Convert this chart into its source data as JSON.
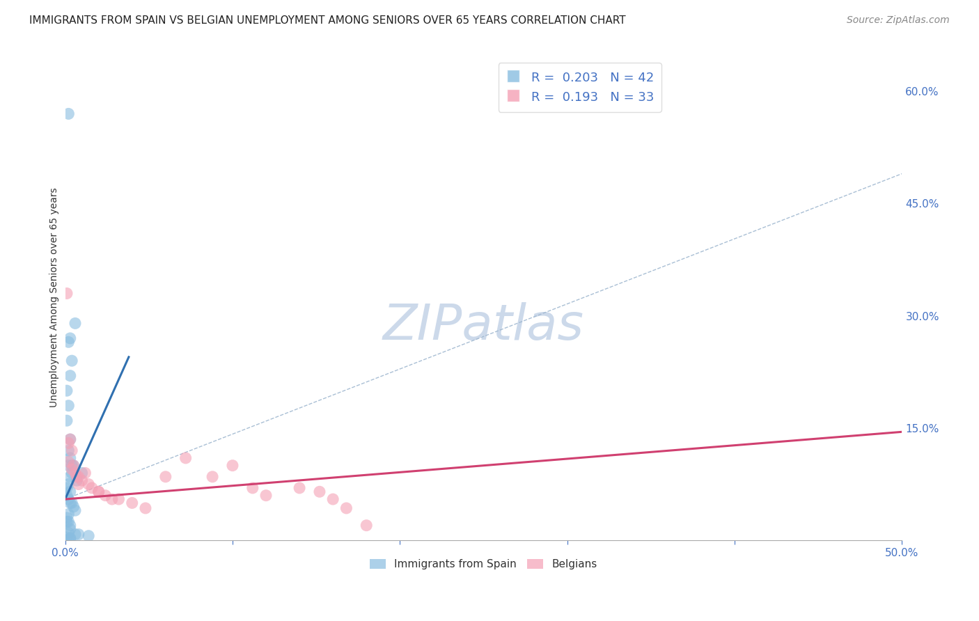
{
  "title": "IMMIGRANTS FROM SPAIN VS BELGIAN UNEMPLOYMENT AMONG SENIORS OVER 65 YEARS CORRELATION CHART",
  "source": "Source: ZipAtlas.com",
  "ylabel": "Unemployment Among Seniors over 65 years",
  "watermark_text": "ZIPatlas",
  "legend_blue": {
    "R": 0.203,
    "N": 42,
    "label": "Immigrants from Spain",
    "color": "#89bde0"
  },
  "legend_pink": {
    "R": 0.193,
    "N": 33,
    "label": "Belgians",
    "color": "#f4a0b5"
  },
  "xmin": 0.0,
  "xmax": 0.5,
  "ymin": 0.0,
  "ymax": 0.65,
  "yticks_right": [
    0.0,
    0.15,
    0.3,
    0.45,
    0.6
  ],
  "ytick_labels_right": [
    "",
    "15.0%",
    "30.0%",
    "45.0%",
    "60.0%"
  ],
  "xticks_positions": [
    0.0,
    0.1,
    0.2,
    0.3,
    0.4,
    0.5
  ],
  "grid_color": "#cccccc",
  "background_color": "#ffffff",
  "blue_scatter_x": [
    0.002,
    0.003,
    0.002,
    0.004,
    0.003,
    0.001,
    0.002,
    0.001,
    0.003,
    0.002,
    0.004,
    0.005,
    0.003,
    0.002,
    0.006,
    0.003,
    0.01,
    0.007,
    0.002,
    0.001,
    0.003,
    0.001,
    0.002,
    0.003,
    0.004,
    0.005,
    0.006,
    0.002,
    0.001,
    0.001,
    0.002,
    0.003,
    0.003,
    0.002,
    0.006,
    0.008,
    0.014,
    0.001,
    0.003,
    0.003,
    0.002,
    0.004
  ],
  "blue_scatter_y": [
    0.57,
    0.27,
    0.265,
    0.24,
    0.22,
    0.2,
    0.18,
    0.16,
    0.135,
    0.12,
    0.1,
    0.1,
    0.11,
    0.1,
    0.29,
    0.085,
    0.09,
    0.08,
    0.075,
    0.07,
    0.065,
    0.06,
    0.055,
    0.05,
    0.05,
    0.045,
    0.04,
    0.035,
    0.03,
    0.025,
    0.025,
    0.02,
    0.015,
    0.01,
    0.008,
    0.008,
    0.006,
    0.004,
    0.003,
    0.002,
    0.001,
    0.09
  ],
  "pink_scatter_x": [
    0.002,
    0.004,
    0.003,
    0.005,
    0.006,
    0.007,
    0.01,
    0.012,
    0.008,
    0.016,
    0.02,
    0.024,
    0.032,
    0.04,
    0.048,
    0.06,
    0.072,
    0.088,
    0.1,
    0.112,
    0.12,
    0.14,
    0.152,
    0.16,
    0.168,
    0.001,
    0.002,
    0.004,
    0.008,
    0.014,
    0.02,
    0.028,
    0.18
  ],
  "pink_scatter_y": [
    0.13,
    0.12,
    0.135,
    0.1,
    0.09,
    0.085,
    0.08,
    0.09,
    0.075,
    0.07,
    0.065,
    0.06,
    0.055,
    0.05,
    0.043,
    0.085,
    0.11,
    0.085,
    0.1,
    0.07,
    0.06,
    0.07,
    0.065,
    0.055,
    0.043,
    0.33,
    0.105,
    0.095,
    0.085,
    0.075,
    0.065,
    0.055,
    0.02
  ],
  "blue_line_x": [
    0.0,
    0.038
  ],
  "blue_line_y": [
    0.055,
    0.245
  ],
  "pink_line_x": [
    0.0,
    0.5
  ],
  "pink_line_y": [
    0.055,
    0.145
  ],
  "dashed_line_x": [
    0.0,
    0.5
  ],
  "dashed_line_y": [
    0.055,
    0.49
  ],
  "title_fontsize": 11,
  "source_fontsize": 10,
  "axis_label_fontsize": 10,
  "legend_fontsize": 13,
  "watermark_fontsize": 52,
  "watermark_color": "#ccd9ea",
  "tick_color": "#4472c4",
  "right_axis_tick_color": "#4472c4",
  "blue_line_color": "#3070b0",
  "pink_line_color": "#d04070",
  "dashed_line_color": "#a0b8d0"
}
